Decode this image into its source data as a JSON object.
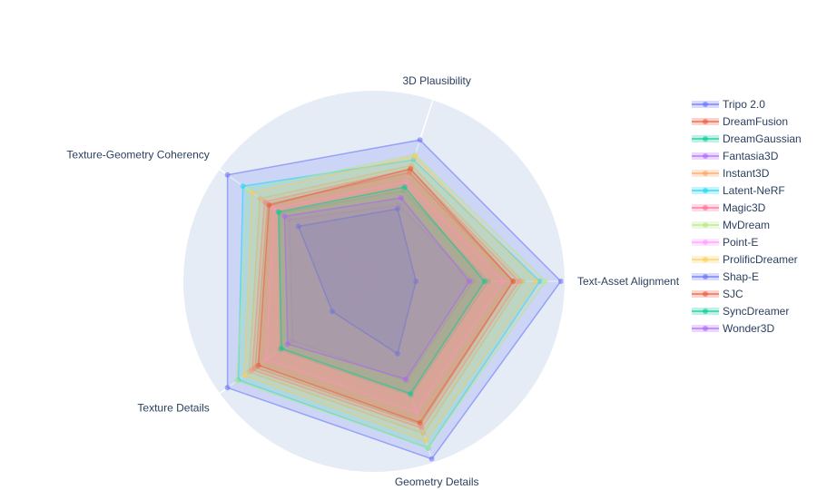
{
  "chart_data": {
    "type": "radar",
    "axes": [
      "3D Plausibility",
      "Text-Asset Alignment",
      "Geometry Details",
      "Texture Details",
      "Texture-Geometry Coherency"
    ],
    "range": [
      0,
      1
    ],
    "grid": true,
    "legend_position": "right",
    "series": [
      {
        "name": "Tripo 2.0",
        "color": "#636efa",
        "values": [
          0.78,
          0.98,
          0.98,
          0.95,
          0.95
        ]
      },
      {
        "name": "DreamFusion",
        "color": "#ef553b",
        "values": [
          0.6,
          0.73,
          0.79,
          0.77,
          0.69
        ]
      },
      {
        "name": "DreamGaussian",
        "color": "#00cc96",
        "values": [
          0.5,
          0.6,
          0.63,
          0.61,
          0.61
        ]
      },
      {
        "name": "Fantasia3D",
        "color": "#ab63fa",
        "values": [
          0.42,
          0.52,
          0.55,
          0.53,
          0.55
        ]
      },
      {
        "name": "Instant3D",
        "color": "#ffa15a",
        "values": [
          0.64,
          0.78,
          0.84,
          0.81,
          0.74
        ]
      },
      {
        "name": "Latent-NeRF",
        "color": "#19d3f3",
        "values": [
          0.67,
          0.87,
          0.92,
          0.88,
          0.85
        ]
      },
      {
        "name": "Magic3D",
        "color": "#ff6692",
        "values": [
          0.62,
          0.76,
          0.81,
          0.79,
          0.71
        ]
      },
      {
        "name": "MvDream",
        "color": "#b6e880",
        "values": [
          0.7,
          0.9,
          0.92,
          0.89,
          0.82
        ]
      },
      {
        "name": "Point-E",
        "color": "#ff97ff",
        "values": [
          0.55,
          0.68,
          0.72,
          0.7,
          0.65
        ]
      },
      {
        "name": "ProlificDreamer",
        "color": "#fecb52",
        "values": [
          0.69,
          0.85,
          0.88,
          0.84,
          0.79
        ]
      },
      {
        "name": "Shap-E",
        "color": "#636efa",
        "values": [
          0.4,
          0.22,
          0.4,
          0.27,
          0.49
        ]
      },
      {
        "name": "SJC",
        "color": "#ef553b",
        "values": [
          0.62,
          0.73,
          0.78,
          0.75,
          0.68
        ]
      },
      {
        "name": "SyncDreamer",
        "color": "#00cc96",
        "values": [
          0.52,
          0.58,
          0.62,
          0.6,
          0.62
        ]
      },
      {
        "name": "Wonder3D",
        "color": "#ab63fa",
        "values": [
          0.46,
          0.5,
          0.54,
          0.56,
          0.58
        ]
      }
    ]
  }
}
